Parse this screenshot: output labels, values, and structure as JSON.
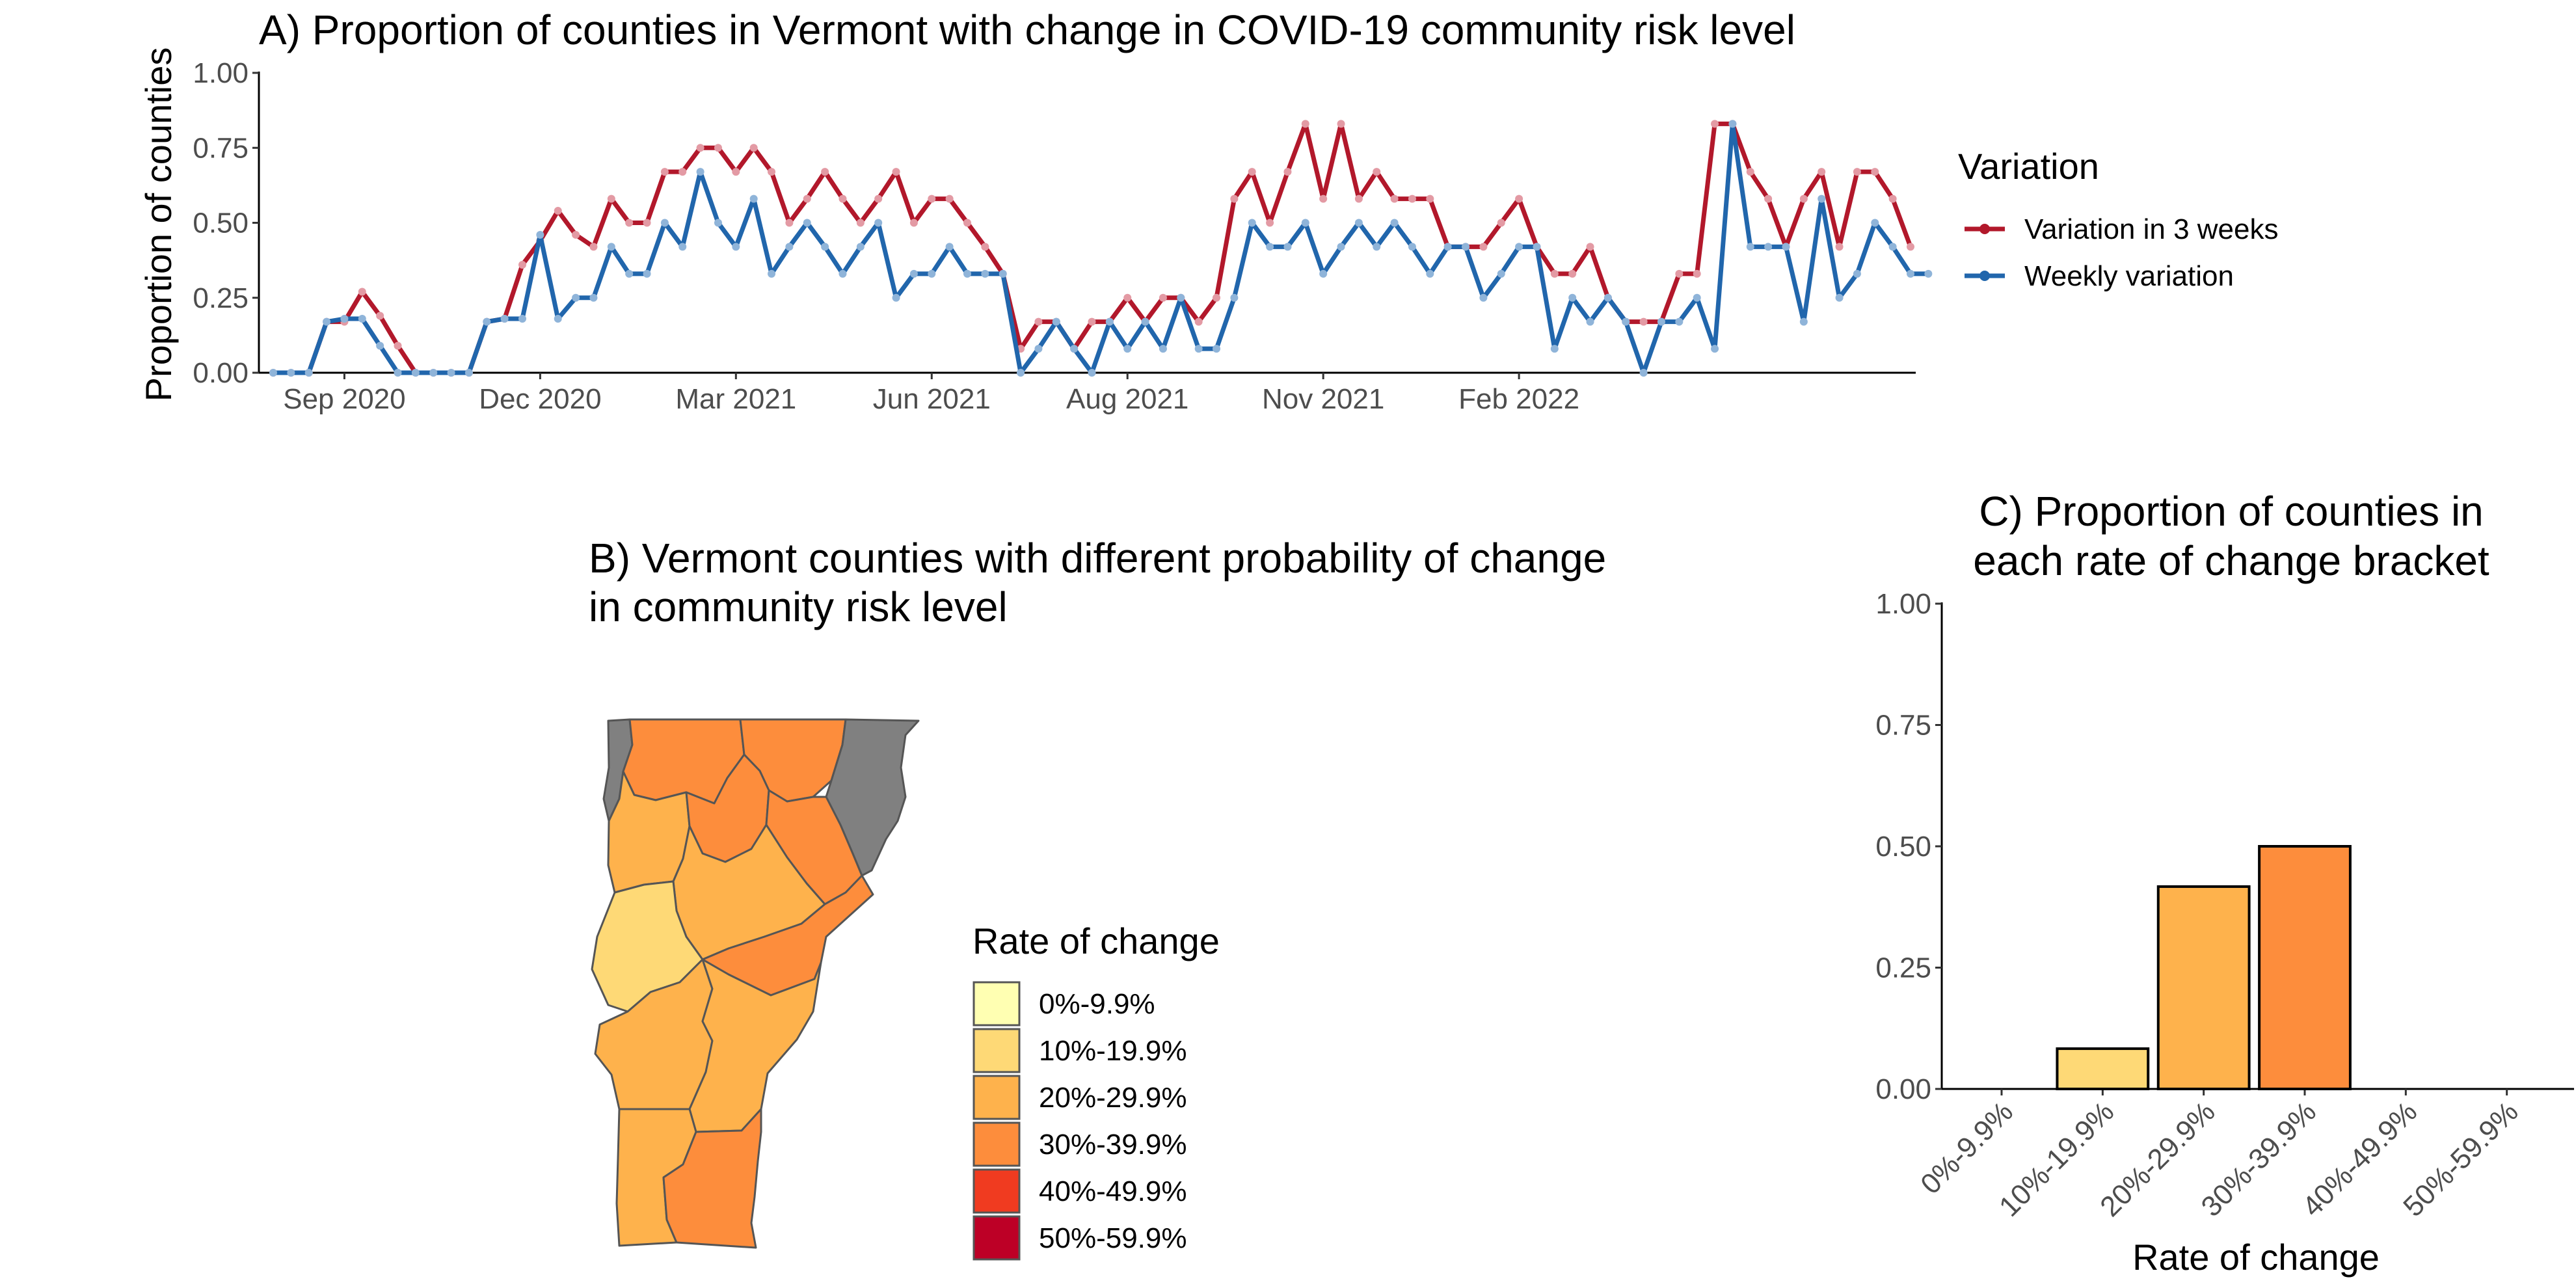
{
  "panelA": {
    "title": "A) Proportion of counties in Vermont with change in COVID-19 community risk level",
    "ylabel": "Proportion of counties",
    "legend_title": "Variation",
    "chart_data": {
      "type": "line",
      "x_ticks": [
        "Sep 2020",
        "Dec 2020",
        "Mar 2021",
        "Jun 2021",
        "Aug 2021",
        "Nov 2021",
        "Feb 2022"
      ],
      "y_ticks": [
        "0.00",
        "0.25",
        "0.50",
        "0.75",
        "1.00"
      ],
      "ylim": [
        0,
        1
      ],
      "grid": false,
      "legend_position": "right",
      "series": [
        {
          "name": "Variation in 3 weeks",
          "color": "#b2182b",
          "values": [
            0,
            0,
            0,
            0.17,
            0.17,
            0.27,
            0.19,
            0.09,
            0,
            0,
            0,
            0,
            0.17,
            0.18,
            0.36,
            0.44,
            0.54,
            0.46,
            0.42,
            0.58,
            0.5,
            0.5,
            0.67,
            0.67,
            0.75,
            0.75,
            0.67,
            0.75,
            0.67,
            0.5,
            0.58,
            0.67,
            0.58,
            0.5,
            0.58,
            0.67,
            0.5,
            0.58,
            0.58,
            0.5,
            0.42,
            0.33,
            0.08,
            0.17,
            0.17,
            0.08,
            0.17,
            0.17,
            0.25,
            0.17,
            0.25,
            0.25,
            0.17,
            0.25,
            0.58,
            0.67,
            0.5,
            0.67,
            0.83,
            0.58,
            0.83,
            0.58,
            0.67,
            0.58,
            0.58,
            0.58,
            0.42,
            0.42,
            0.42,
            0.5,
            0.58,
            0.42,
            0.33,
            0.33,
            0.42,
            0.25,
            0.17,
            0.17,
            0.17,
            0.33,
            0.33,
            0.83,
            0.83,
            0.67,
            0.58,
            0.42,
            0.58,
            0.67,
            0.42,
            0.67,
            0.67,
            0.58,
            0.42
          ]
        },
        {
          "name": "Weekly variation",
          "color": "#2166ac",
          "values": [
            0,
            0,
            0,
            0.17,
            0.18,
            0.18,
            0.09,
            0,
            0,
            0,
            0,
            0,
            0.17,
            0.18,
            0.18,
            0.46,
            0.18,
            0.25,
            0.25,
            0.42,
            0.33,
            0.33,
            0.5,
            0.42,
            0.67,
            0.5,
            0.42,
            0.58,
            0.33,
            0.42,
            0.5,
            0.42,
            0.33,
            0.42,
            0.5,
            0.25,
            0.33,
            0.33,
            0.42,
            0.33,
            0.33,
            0.33,
            0,
            0.08,
            0.17,
            0.08,
            0,
            0.17,
            0.08,
            0.17,
            0.08,
            0.25,
            0.08,
            0.08,
            0.25,
            0.5,
            0.42,
            0.42,
            0.5,
            0.33,
            0.42,
            0.5,
            0.42,
            0.5,
            0.42,
            0.33,
            0.42,
            0.42,
            0.25,
            0.33,
            0.42,
            0.42,
            0.08,
            0.25,
            0.17,
            0.25,
            0.17,
            0,
            0.17,
            0.17,
            0.25,
            0.08,
            0.83,
            0.42,
            0.42,
            0.42,
            0.17,
            0.58,
            0.25,
            0.33,
            0.5,
            0.42,
            0.33,
            0.33
          ]
        }
      ]
    }
  },
  "panelB": {
    "title_line1": "B)  Vermont counties with different probability of change",
    "title_line2": "in community risk level",
    "legend_title": "Rate of change",
    "legend": [
      {
        "label": "0%-9.9%",
        "color": "#ffffb2"
      },
      {
        "label": "10%-19.9%",
        "color": "#fed976"
      },
      {
        "label": "20%-29.9%",
        "color": "#feb24c"
      },
      {
        "label": "30%-39.9%",
        "color": "#fd8d3c"
      },
      {
        "label": "40%-49.9%",
        "color": "#f03b20"
      },
      {
        "label": "50%-59.9%",
        "color": "#bd0026"
      }
    ],
    "no_data_color": "#808080"
  },
  "panelC": {
    "title_line1": "C) Proportion of counties in",
    "title_line2": "each rate of change bracket",
    "chart_data": {
      "type": "bar",
      "categories": [
        "0%-9.9%",
        "10%-19.9%",
        "20%-29.9%",
        "30%-39.9%",
        "40%-49.9%",
        "50%-59.9%"
      ],
      "values": [
        0,
        0.083,
        0.417,
        0.5,
        0,
        0
      ],
      "colors": [
        "#ffffb2",
        "#fed976",
        "#feb24c",
        "#fd8d3c",
        "#f03b20",
        "#bd0026"
      ],
      "xlabel": "Rate of change",
      "ylabel": "",
      "y_ticks": [
        "0.00",
        "0.25",
        "0.50",
        "0.75",
        "1.00"
      ],
      "ylim": [
        0,
        1
      ],
      "grid": false
    }
  }
}
